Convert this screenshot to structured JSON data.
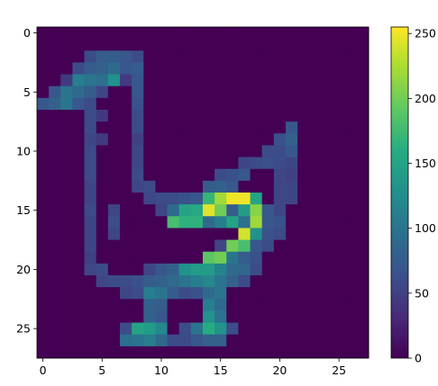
{
  "chart_data": {
    "type": "heatmap",
    "title": "",
    "xlabel": "",
    "ylabel": "",
    "colormap": "viridis",
    "grid": false,
    "rows": 28,
    "cols": 28,
    "xlim": [
      -0.5,
      27.5
    ],
    "ylim": [
      27.5,
      -0.5
    ],
    "x_ticks": [
      0,
      5,
      10,
      15,
      20,
      25
    ],
    "y_ticks": [
      0,
      5,
      10,
      15,
      20,
      25
    ],
    "colorbar": {
      "min": 0,
      "max": 255,
      "ticks": [
        0,
        50,
        100,
        150,
        200,
        250
      ]
    },
    "pixels": [
      [
        2,
        4,
        60
      ],
      [
        2,
        5,
        75
      ],
      [
        2,
        6,
        75
      ],
      [
        2,
        7,
        70
      ],
      [
        2,
        8,
        60
      ],
      [
        3,
        3,
        60
      ],
      [
        3,
        4,
        75
      ],
      [
        3,
        5,
        80
      ],
      [
        3,
        6,
        90
      ],
      [
        3,
        7,
        70
      ],
      [
        3,
        8,
        75
      ],
      [
        4,
        2,
        45
      ],
      [
        4,
        3,
        110
      ],
      [
        4,
        4,
        100
      ],
      [
        4,
        5,
        95
      ],
      [
        4,
        6,
        130
      ],
      [
        4,
        7,
        45
      ],
      [
        4,
        8,
        70
      ],
      [
        5,
        1,
        70
      ],
      [
        5,
        2,
        100
      ],
      [
        5,
        3,
        90
      ],
      [
        5,
        4,
        75
      ],
      [
        5,
        5,
        55
      ],
      [
        5,
        8,
        70
      ],
      [
        6,
        0,
        70
      ],
      [
        6,
        1,
        80
      ],
      [
        6,
        2,
        100
      ],
      [
        6,
        3,
        70
      ],
      [
        6,
        4,
        60
      ],
      [
        6,
        8,
        65
      ],
      [
        7,
        4,
        60
      ],
      [
        7,
        5,
        45
      ],
      [
        7,
        8,
        60
      ],
      [
        8,
        4,
        60
      ],
      [
        8,
        8,
        60
      ],
      [
        8,
        21,
        70
      ],
      [
        9,
        4,
        55
      ],
      [
        9,
        5,
        45
      ],
      [
        9,
        8,
        50
      ],
      [
        9,
        20,
        65
      ],
      [
        9,
        21,
        80
      ],
      [
        10,
        4,
        60
      ],
      [
        10,
        8,
        55
      ],
      [
        10,
        19,
        60
      ],
      [
        10,
        20,
        60
      ],
      [
        10,
        21,
        70
      ],
      [
        11,
        4,
        60
      ],
      [
        11,
        8,
        55
      ],
      [
        11,
        17,
        55
      ],
      [
        11,
        18,
        60
      ],
      [
        11,
        19,
        65
      ],
      [
        11,
        20,
        60
      ],
      [
        11,
        21,
        55
      ],
      [
        12,
        4,
        60
      ],
      [
        12,
        8,
        60
      ],
      [
        12,
        15,
        60
      ],
      [
        12,
        16,
        65
      ],
      [
        12,
        17,
        70
      ],
      [
        12,
        20,
        55
      ],
      [
        12,
        21,
        50
      ],
      [
        13,
        4,
        55
      ],
      [
        13,
        8,
        55
      ],
      [
        13,
        9,
        60
      ],
      [
        13,
        14,
        75
      ],
      [
        13,
        15,
        80
      ],
      [
        13,
        16,
        70
      ],
      [
        13,
        20,
        55
      ],
      [
        13,
        21,
        55
      ],
      [
        14,
        4,
        55
      ],
      [
        14,
        9,
        55
      ],
      [
        14,
        10,
        60
      ],
      [
        14,
        11,
        60
      ],
      [
        14,
        12,
        65
      ],
      [
        14,
        13,
        70
      ],
      [
        14,
        14,
        170
      ],
      [
        14,
        15,
        220
      ],
      [
        14,
        16,
        250
      ],
      [
        14,
        17,
        250
      ],
      [
        14,
        18,
        150
      ],
      [
        14,
        20,
        55
      ],
      [
        14,
        21,
        55
      ],
      [
        15,
        4,
        60
      ],
      [
        15,
        6,
        55
      ],
      [
        15,
        10,
        55
      ],
      [
        15,
        11,
        90
      ],
      [
        15,
        12,
        150
      ],
      [
        15,
        13,
        155
      ],
      [
        15,
        14,
        245
      ],
      [
        15,
        15,
        200
      ],
      [
        15,
        16,
        75
      ],
      [
        15,
        17,
        140
      ],
      [
        15,
        18,
        210
      ],
      [
        15,
        19,
        70
      ],
      [
        15,
        20,
        55
      ],
      [
        16,
        4,
        55
      ],
      [
        16,
        6,
        60
      ],
      [
        16,
        11,
        180
      ],
      [
        16,
        12,
        165
      ],
      [
        16,
        13,
        165
      ],
      [
        16,
        14,
        90
      ],
      [
        16,
        15,
        110
      ],
      [
        16,
        16,
        150
      ],
      [
        16,
        17,
        95
      ],
      [
        16,
        18,
        220
      ],
      [
        16,
        19,
        70
      ],
      [
        16,
        20,
        65
      ],
      [
        17,
        4,
        55
      ],
      [
        17,
        6,
        55
      ],
      [
        17,
        17,
        240
      ],
      [
        17,
        18,
        130
      ],
      [
        17,
        19,
        65
      ],
      [
        17,
        20,
        60
      ],
      [
        18,
        4,
        55
      ],
      [
        18,
        15,
        55
      ],
      [
        18,
        16,
        200
      ],
      [
        18,
        17,
        180
      ],
      [
        18,
        18,
        70
      ],
      [
        18,
        19,
        60
      ],
      [
        19,
        4,
        50
      ],
      [
        19,
        14,
        190
      ],
      [
        19,
        15,
        200
      ],
      [
        19,
        16,
        100
      ],
      [
        19,
        17,
        75
      ],
      [
        19,
        18,
        65
      ],
      [
        20,
        4,
        55
      ],
      [
        20,
        5,
        60
      ],
      [
        20,
        9,
        55
      ],
      [
        20,
        10,
        70
      ],
      [
        20,
        11,
        80
      ],
      [
        20,
        12,
        130
      ],
      [
        20,
        13,
        140
      ],
      [
        20,
        14,
        140
      ],
      [
        20,
        15,
        115
      ],
      [
        20,
        16,
        90
      ],
      [
        20,
        17,
        85
      ],
      [
        20,
        18,
        60
      ],
      [
        21,
        5,
        55
      ],
      [
        21,
        6,
        60
      ],
      [
        21,
        7,
        60
      ],
      [
        21,
        8,
        65
      ],
      [
        21,
        9,
        75
      ],
      [
        21,
        10,
        80
      ],
      [
        21,
        11,
        90
      ],
      [
        21,
        12,
        100
      ],
      [
        21,
        13,
        110
      ],
      [
        21,
        14,
        120
      ],
      [
        21,
        15,
        100
      ],
      [
        21,
        16,
        80
      ],
      [
        21,
        17,
        60
      ],
      [
        22,
        7,
        55
      ],
      [
        22,
        8,
        60
      ],
      [
        22,
        9,
        110
      ],
      [
        22,
        10,
        100
      ],
      [
        22,
        11,
        75
      ],
      [
        22,
        12,
        60
      ],
      [
        22,
        13,
        65
      ],
      [
        22,
        14,
        90
      ],
      [
        22,
        15,
        100
      ],
      [
        23,
        9,
        80
      ],
      [
        23,
        10,
        75
      ],
      [
        23,
        14,
        110
      ],
      [
        23,
        15,
        90
      ],
      [
        24,
        9,
        80
      ],
      [
        24,
        10,
        70
      ],
      [
        24,
        14,
        130
      ],
      [
        24,
        15,
        95
      ],
      [
        25,
        7,
        60
      ],
      [
        25,
        8,
        150
      ],
      [
        25,
        9,
        140
      ],
      [
        25,
        10,
        120
      ],
      [
        25,
        12,
        60
      ],
      [
        25,
        13,
        100
      ],
      [
        25,
        14,
        160
      ],
      [
        25,
        15,
        130
      ],
      [
        25,
        16,
        60
      ],
      [
        26,
        7,
        95
      ],
      [
        26,
        8,
        100
      ],
      [
        26,
        9,
        110
      ],
      [
        26,
        10,
        90
      ],
      [
        26,
        11,
        60
      ],
      [
        26,
        12,
        60
      ],
      [
        26,
        13,
        70
      ],
      [
        26,
        14,
        80
      ],
      [
        26,
        15,
        80
      ]
    ]
  }
}
